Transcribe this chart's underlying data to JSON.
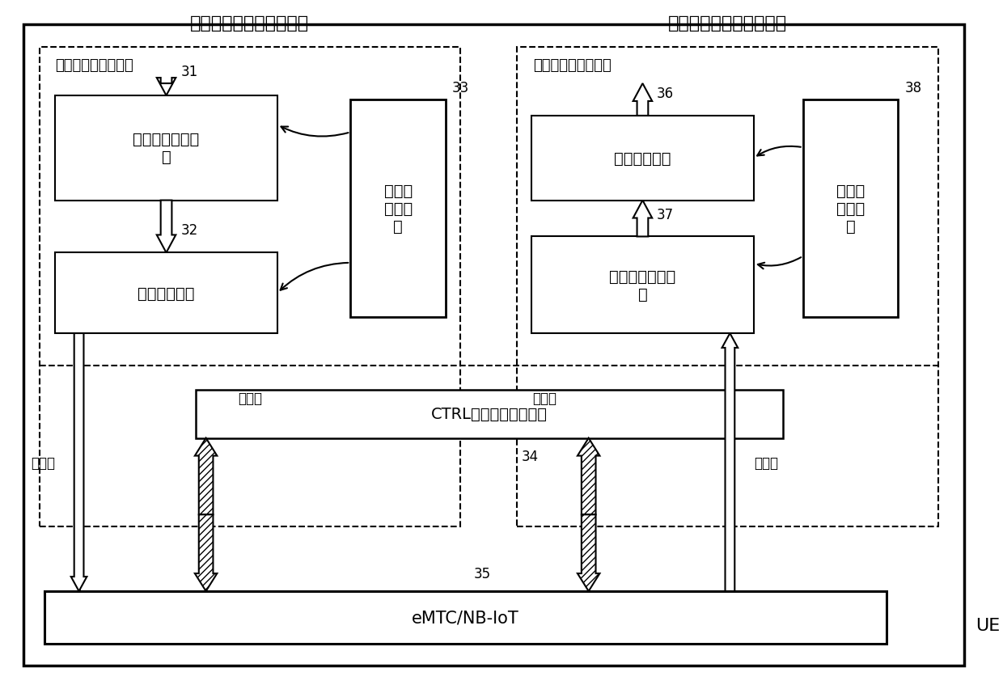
{
  "title_left": "上行用户数据包发送过程",
  "title_right": "下行用户数据包接收过程",
  "label_orig_left": "待发送的原始数据包",
  "label_orig_right": "接收到的原始数据包",
  "box31_label": "发送数据检测模\n块",
  "box32_label": "数据压缩模块",
  "box33_label": "发送基\n准数据\n包",
  "box34_label": "CTRL控制消息处理模块",
  "box35_label": "eMTC/NB-IoT",
  "box36_label": "数据恢复模块",
  "box37_label": "接收数据检测模\n块",
  "box38_label": "接收基\n准数据\n包",
  "label_data_pkg_left": "数据包",
  "label_ctrl_pkg_left": "控制包",
  "label_ctrl_pkg_right": "控制包",
  "label_data_pkg_right": "数据包",
  "label_UE": "UE",
  "num31": "31",
  "num32": "32",
  "num33": "33",
  "num34": "34",
  "num35": "35",
  "num36": "36",
  "num37": "37",
  "num38": "38"
}
